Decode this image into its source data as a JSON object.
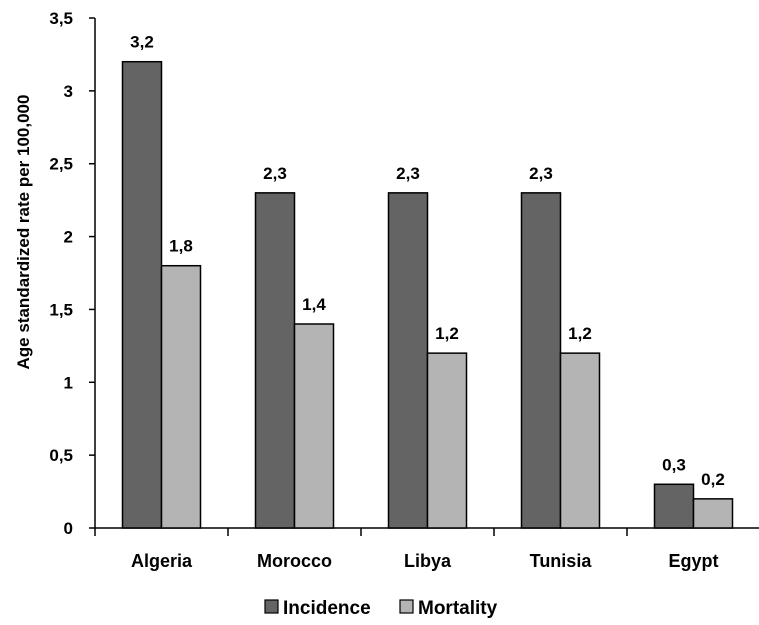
{
  "chart_data": {
    "type": "bar",
    "categories": [
      "Algeria",
      "Morocco",
      "Libya",
      "Tunisia",
      "Egypt"
    ],
    "series": [
      {
        "name": "Incidence",
        "values": [
          3.2,
          2.3,
          2.3,
          2.3,
          0.3
        ],
        "labels": [
          "3,2",
          "2,3",
          "2,3",
          "2,3",
          "0,3"
        ],
        "color": "#646464"
      },
      {
        "name": "Mortality",
        "values": [
          1.8,
          1.4,
          1.2,
          1.2,
          0.2
        ],
        "labels": [
          "1,8",
          "1,4",
          "1,2",
          "1,2",
          "0,2"
        ],
        "color": "#b4b4b4"
      }
    ],
    "ylabel": "Age standardized rate per 100,000",
    "xlabel": "",
    "ylim": [
      0,
      3.5
    ],
    "yticks": [
      0,
      0.5,
      1,
      1.5,
      2,
      2.5,
      3,
      3.5
    ],
    "ytick_labels": [
      "0",
      "0,5",
      "1",
      "1,5",
      "2",
      "2,5",
      "3",
      "3,5"
    ],
    "grid": false,
    "legend_position": "bottom"
  }
}
